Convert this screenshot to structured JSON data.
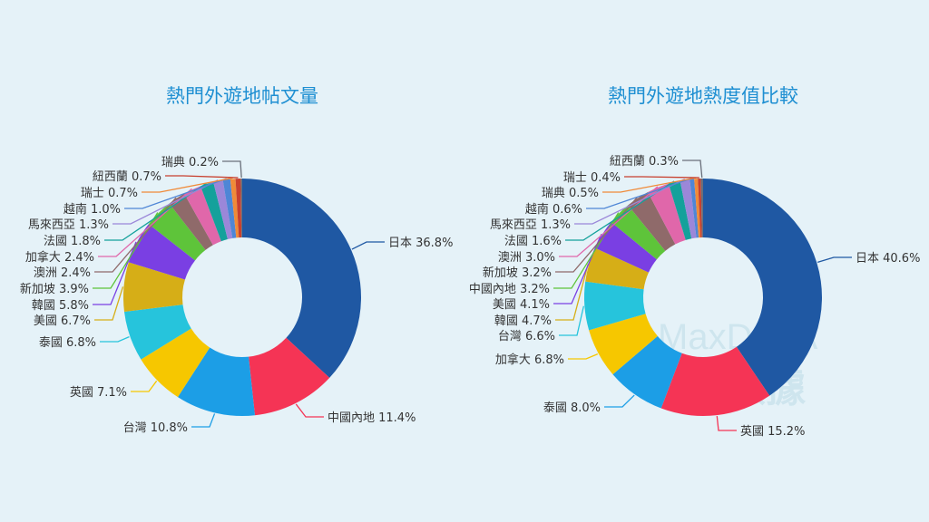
{
  "colors": [
    "#1f58a3",
    "#f53455",
    "#1c9ee6",
    "#f6c700",
    "#26c4dc",
    "#d6ae17",
    "#7a3fe3",
    "#5ec43a",
    "#8f6a6a",
    "#e067aa",
    "#14a19b",
    "#9b87d9",
    "#4f86d6",
    "#f08a38",
    "#c8402f",
    "#6a6f7a"
  ],
  "watermark": {
    "latin": "MaxDATA",
    "cjk": "數據"
  },
  "chart_data": [
    {
      "type": "pie",
      "donut": true,
      "title": "熱門外遊地帖文量",
      "categories": [
        "日本",
        "中國內地",
        "台灣",
        "英國",
        "泰國",
        "美國",
        "韓國",
        "新加坡",
        "澳洲",
        "加拿大",
        "法國",
        "馬來西亞",
        "越南",
        "瑞士",
        "紐西蘭",
        "瑞典"
      ],
      "values": [
        36.8,
        11.4,
        10.8,
        7.1,
        6.8,
        6.7,
        5.8,
        3.9,
        2.4,
        2.4,
        1.8,
        1.3,
        1.0,
        0.7,
        0.7,
        0.2
      ],
      "labels": [
        "日本 36.8%",
        "中國內地 11.4%",
        "台灣 10.8%",
        "英國 7.1%",
        "泰國 6.8%",
        "美國 6.7%",
        "韓國 5.8%",
        "新加坡 3.9%",
        "澳洲 2.4%",
        "加拿大 2.4%",
        "法國 1.8%",
        "馬來西亞 1.3%",
        "越南 1.0%",
        "瑞士 0.7%",
        "紐西蘭 0.7%",
        "瑞典 0.2%"
      ]
    },
    {
      "type": "pie",
      "donut": true,
      "title": "熱門外遊地熱度值比較",
      "categories": [
        "日本",
        "英國",
        "泰國",
        "加拿大",
        "台灣",
        "韓國",
        "美國",
        "中國內地",
        "新加坡",
        "澳洲",
        "法國",
        "馬來西亞",
        "越南",
        "瑞典",
        "瑞士",
        "紐西蘭"
      ],
      "values": [
        40.6,
        15.2,
        8.0,
        6.8,
        6.6,
        4.7,
        4.1,
        3.2,
        3.2,
        3.0,
        1.6,
        1.3,
        0.6,
        0.5,
        0.4,
        0.3
      ],
      "labels": [
        "日本 40.6%",
        "英國 15.2%",
        "泰國 8.0%",
        "加拿大 6.8%",
        "台灣 6.6%",
        "韓國 4.7%",
        "美國 4.1%",
        "中國內地 3.2%",
        "新加坡 3.2%",
        "澳洲 3.0%",
        "法國 1.6%",
        "馬來西亞 1.3%",
        "越南 0.6%",
        "瑞典 0.5%",
        "瑞士 0.4%",
        "紐西蘭 0.3%"
      ]
    }
  ]
}
